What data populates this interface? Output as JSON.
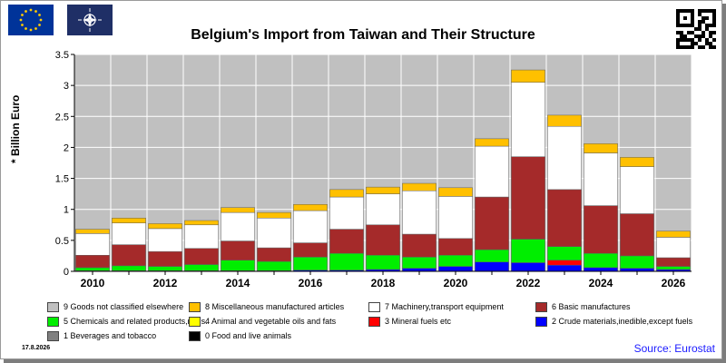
{
  "header": {
    "title": "Belgium's Import from Taiwan and Their Structure",
    "flag_left_icon": "eu-flag-icon",
    "flag_right_icon": "nato-flag-icon",
    "qr_icon": "qr-code-icon"
  },
  "footer": {
    "date": "17.8.2026",
    "source": "Source: Eurostat"
  },
  "chart_data": {
    "type": "bar",
    "stacked": true,
    "title": "Belgium's Import from Taiwan and Their Structure",
    "ylabel": "* Billion Euro",
    "xlabel": "",
    "ylim": [
      0,
      3.5
    ],
    "yticks": [
      "0",
      "0.5",
      "1",
      "1.5",
      "2",
      "2.5",
      "3",
      "3.5"
    ],
    "yticks_values": [
      0,
      0.5,
      1,
      1.5,
      2,
      2.5,
      3,
      3.5
    ],
    "categories": [
      "2010",
      "2011",
      "2012",
      "2013",
      "2014",
      "2015",
      "2016",
      "2017",
      "2018",
      "2019",
      "2020",
      "2021",
      "2022",
      "2023",
      "2024",
      "2025",
      "2026"
    ],
    "xtick_labels": [
      "2010",
      "2012",
      "2014",
      "2016",
      "2018",
      "2020",
      "2022",
      "2024",
      "2026"
    ],
    "grid": true,
    "legend_position": "bottom",
    "series": [
      {
        "name": "0 Food and live animals",
        "color": "#000000",
        "values": [
          0,
          0,
          0,
          0,
          0,
          0,
          0,
          0,
          0,
          0,
          0,
          0,
          0,
          0,
          0,
          0,
          0
        ]
      },
      {
        "name": "1 Beverages and tobacco",
        "color": "#808080",
        "values": [
          0,
          0,
          0,
          0,
          0,
          0,
          0,
          0,
          0,
          0,
          0,
          0,
          0,
          0,
          0,
          0,
          0
        ]
      },
      {
        "name": "2 Crude materials,inedible,except fuels",
        "color": "#0000ff",
        "values": [
          0.01,
          0.01,
          0.01,
          0.01,
          0.01,
          0.01,
          0.02,
          0.02,
          0.03,
          0.05,
          0.08,
          0.15,
          0.14,
          0.1,
          0.06,
          0.05,
          0.03
        ]
      },
      {
        "name": "3 Mineral fuels etc",
        "color": "#ff0000",
        "values": [
          0,
          0,
          0,
          0,
          0,
          0,
          0,
          0,
          0,
          0,
          0,
          0,
          0,
          0.08,
          0,
          0,
          0
        ]
      },
      {
        "name": "5 Chemicals and related products,n.e.s.",
        "color": "#00ee00",
        "values": [
          0.05,
          0.08,
          0.07,
          0.1,
          0.17,
          0.15,
          0.21,
          0.27,
          0.23,
          0.18,
          0.18,
          0.2,
          0.38,
          0.22,
          0.23,
          0.2,
          0.05
        ]
      },
      {
        "name": "6 Basic manufactures",
        "color": "#a52a2a",
        "values": [
          0.2,
          0.34,
          0.24,
          0.26,
          0.31,
          0.22,
          0.23,
          0.39,
          0.49,
          0.37,
          0.27,
          0.85,
          1.33,
          0.92,
          0.77,
          0.68,
          0.14
        ]
      },
      {
        "name": "7 Machinery,transport equipment",
        "color": "#ffffff",
        "values": [
          0.35,
          0.35,
          0.37,
          0.38,
          0.46,
          0.48,
          0.52,
          0.52,
          0.5,
          0.7,
          0.68,
          0.82,
          1.2,
          1.02,
          0.85,
          0.76,
          0.33
        ]
      },
      {
        "name": "4 Animal and vegetable oils and fats",
        "color": "#ffff00",
        "values": [
          0,
          0,
          0,
          0,
          0,
          0,
          0,
          0,
          0,
          0,
          0,
          0,
          0,
          0,
          0,
          0,
          0
        ]
      },
      {
        "name": "8 Miscellaneous manufactured articles",
        "color": "#ffc000",
        "values": [
          0.07,
          0.08,
          0.08,
          0.07,
          0.08,
          0.09,
          0.1,
          0.12,
          0.11,
          0.12,
          0.14,
          0.12,
          0.2,
          0.18,
          0.15,
          0.15,
          0.1
        ]
      },
      {
        "name": "9 Goods not classified elsewhere",
        "color": "#c0c0c0",
        "values": [
          0,
          0,
          0,
          0,
          0,
          0,
          0,
          0,
          0,
          0,
          0,
          0,
          0,
          0,
          0,
          0,
          0
        ]
      }
    ]
  },
  "legend": [
    {
      "label": "9 Goods not classified elsewhere",
      "color": "#c0c0c0"
    },
    {
      "label": "8 Miscellaneous manufactured articles",
      "color": "#ffc000"
    },
    {
      "label": "7 Machinery,transport equipment",
      "color": "#ffffff"
    },
    {
      "label": "6 Basic manufactures",
      "color": "#a52a2a"
    },
    {
      "label": "5 Chemicals and related products,n.e.s.",
      "color": "#00ee00"
    },
    {
      "label": "4 Animal and vegetable oils and fats",
      "color": "#ffff00"
    },
    {
      "label": "3 Mineral fuels etc",
      "color": "#ff0000"
    },
    {
      "label": "2 Crude materials,inedible,except fuels",
      "color": "#0000ff"
    },
    {
      "label": "1 Beverages and tobacco",
      "color": "#808080"
    },
    {
      "label": "0 Food and live animals",
      "color": "#000000"
    }
  ]
}
